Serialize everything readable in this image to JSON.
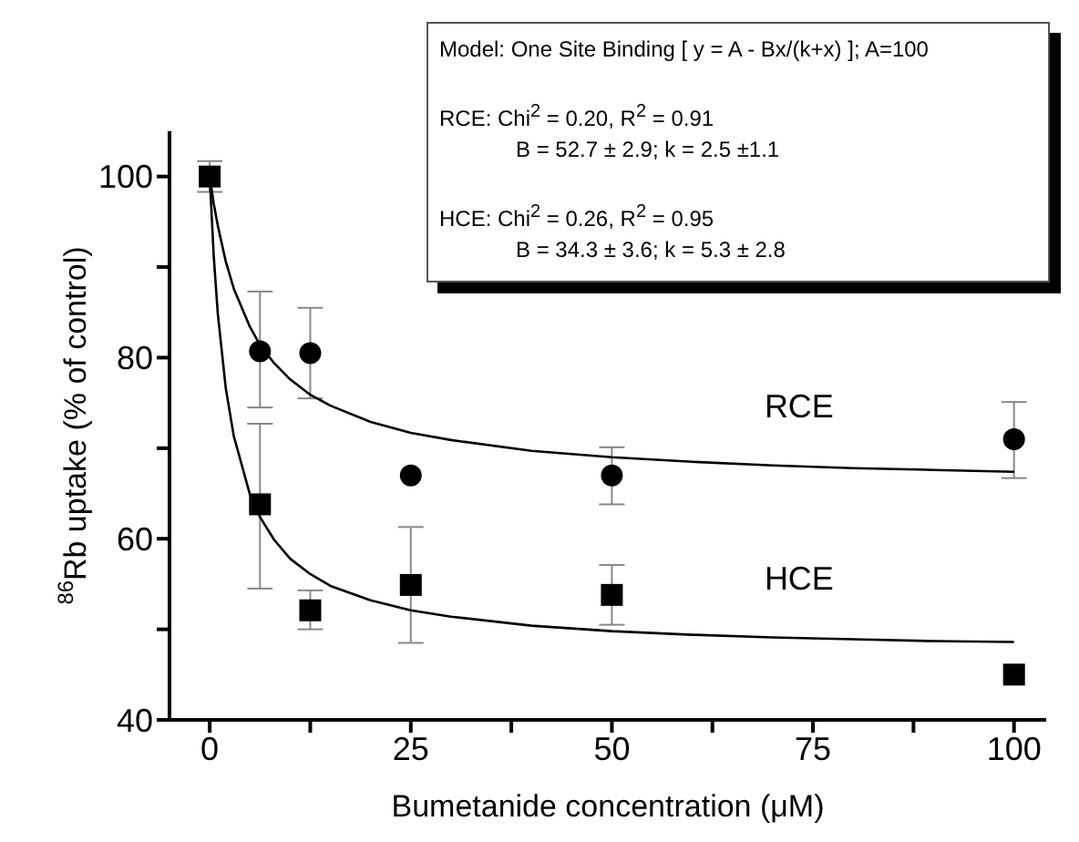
{
  "chart_data": {
    "type": "scatter",
    "xlabel": "Bumetanide concentration (μM)",
    "ylabel": "$^{86}$Rb uptake (% of control)",
    "xlim": [
      -5,
      104
    ],
    "ylim": [
      40,
      105
    ],
    "xticks": [
      0,
      {
        "value": 12.5,
        "label": null
      },
      25,
      {
        "value": 37.5,
        "label": null
      },
      50,
      {
        "value": 62.5,
        "label": null
      },
      75,
      {
        "value": 87.5,
        "label": null
      },
      100
    ],
    "yticks": [
      40,
      {
        "value": 50,
        "label": null
      },
      60,
      {
        "value": 70,
        "label": null
      },
      80,
      {
        "value": 90,
        "label": null
      },
      100
    ],
    "grid": false,
    "legend": false,
    "series": [
      {
        "type": "line",
        "name": "RCE",
        "color": "#000000",
        "marker": "none",
        "line_style": "solid",
        "x": [
          0,
          0.5,
          1,
          2,
          3,
          5,
          6.25,
          8,
          10,
          12.5,
          15,
          20,
          25,
          30,
          40,
          50,
          60,
          70,
          80,
          90,
          100
        ],
        "values": [
          100,
          97.0,
          94.6,
          90.6,
          87.6,
          83.4,
          81.4,
          79.4,
          77.6,
          75.9,
          74.7,
          72.9,
          71.7,
          70.9,
          69.7,
          69.0,
          68.5,
          68.1,
          67.8,
          67.6,
          67.4
        ]
      },
      {
        "type": "line",
        "name": "HCE",
        "color": "#000000",
        "marker": "none",
        "line_style": "solid",
        "x": [
          0,
          0.5,
          1,
          2,
          3,
          5,
          6.25,
          8,
          10,
          12.5,
          15,
          20,
          25,
          30,
          40,
          50,
          60,
          70,
          80,
          90,
          100
        ],
        "values": [
          100,
          91.2,
          84.9,
          76.6,
          71.3,
          64.9,
          62.4,
          59.9,
          57.8,
          56.1,
          54.8,
          53.2,
          52.1,
          51.4,
          50.4,
          49.8,
          49.4,
          49.1,
          48.9,
          48.7,
          48.6
        ]
      },
      {
        "type": "scatter",
        "color": "#000000",
        "marker": "circle",
        "x": [
          6.25,
          12.5,
          25,
          50,
          100
        ],
        "values": [
          80.7,
          80.5,
          67,
          67,
          71
        ],
        "errors": [
          [
            74.5,
            87.3
          ],
          [
            75.5,
            85.5
          ],
          null,
          [
            63.8,
            70.1
          ],
          [
            66.7,
            75.1
          ]
        ]
      },
      {
        "type": "scatter",
        "color": "#000000",
        "marker": "square",
        "x": [
          0,
          6.25,
          12.5,
          25,
          50,
          100
        ],
        "values": [
          100,
          63.8,
          52.1,
          54.9,
          53.8,
          45
        ],
        "errors": [
          [
            98.3,
            101.7
          ],
          [
            54.5,
            72.7
          ],
          [
            50,
            54.3
          ],
          [
            48.5,
            61.3
          ],
          [
            50.5,
            57.1
          ],
          null
        ]
      }
    ],
    "annotations": [
      "Model: One Site Binding [ y = A - Bx/(k+x) ]; A=100",
      "RCE:  Chi$^{2}$ =  0.20, R$^{2}$ =  0.91",
      "B = 52.7 ± 2.9; k = 2.5 ±1.1",
      "HCE:  Chi$^{2}$ =  0.26, R$^{2}$ = 0.95",
      "B = 34.3 ± 3.6;  k = 5.3 ± 2.8"
    ]
  }
}
